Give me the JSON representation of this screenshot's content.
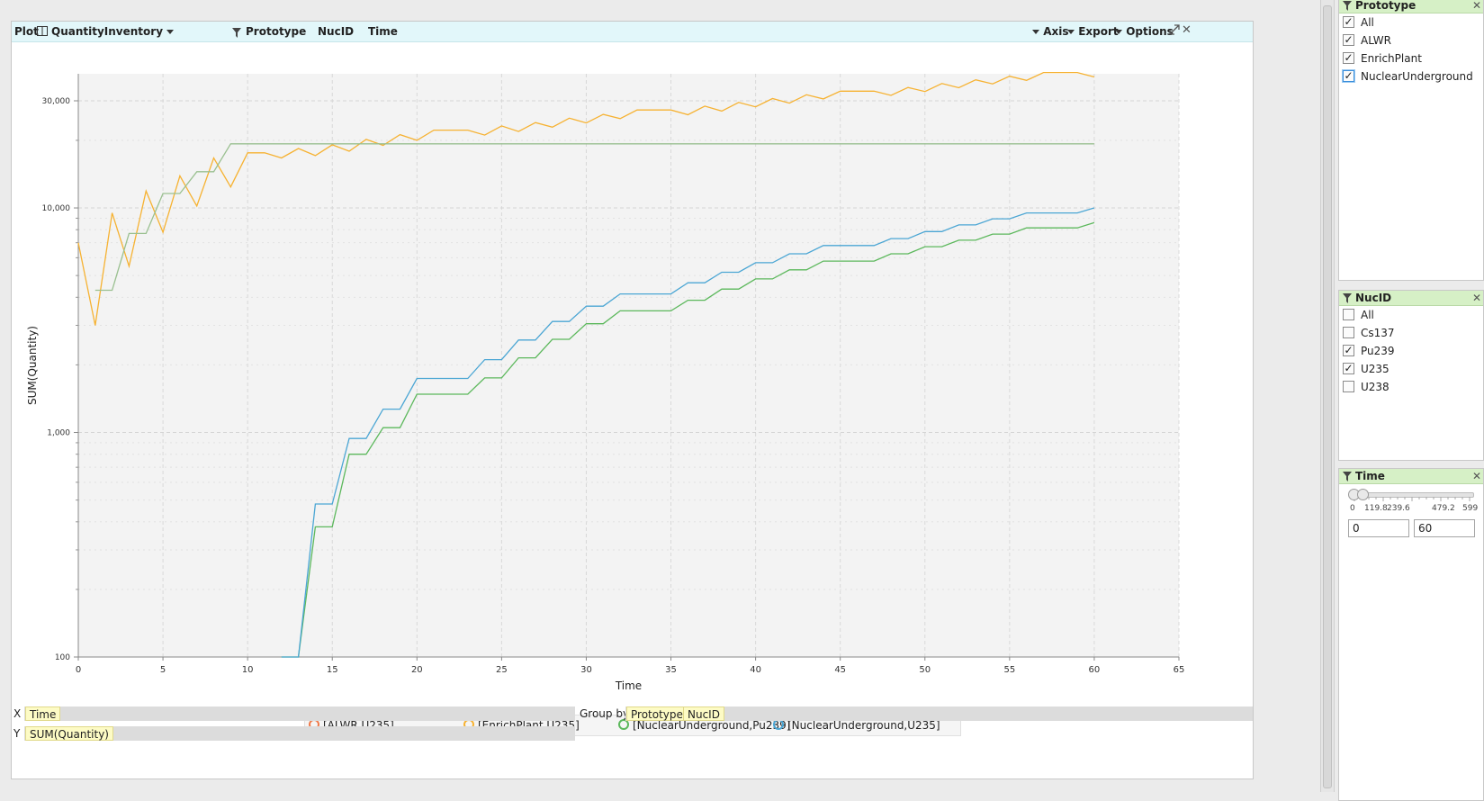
{
  "toolbar": {
    "plot_label": "Plot",
    "view_name": "QuantityInventory",
    "filters": [
      "Prototype",
      "NucID",
      "Time"
    ],
    "axis_label": "Axis",
    "export_label": "Export",
    "options_label": "Options"
  },
  "chart_data": {
    "type": "line",
    "ylabel": "SUM(Quantity)",
    "xlabel": "Time",
    "y_scale": "log",
    "xlim": [
      0,
      65
    ],
    "x_ticks": [
      0,
      5,
      10,
      15,
      20,
      25,
      30,
      35,
      40,
      45,
      50,
      55,
      60,
      65
    ],
    "y_ticks": [
      {
        "value": 100,
        "label": "100"
      },
      {
        "value": 1000,
        "label": "1,000"
      },
      {
        "value": 10000,
        "label": "10,000"
      },
      {
        "value": 30000,
        "label": "30,000"
      }
    ],
    "grid": true,
    "legend_placement": "bottom",
    "series": [
      {
        "name": "[ALWR,U235]",
        "color": "#f07a4a",
        "x": [],
        "y": []
      },
      {
        "name": "[EnrichPlant,U235]",
        "color": "#f6b232",
        "x": [
          0,
          1,
          2,
          3,
          4,
          5,
          6,
          7,
          8,
          9,
          10,
          11,
          12,
          13,
          14,
          15,
          16,
          17,
          18,
          19,
          20,
          21,
          22,
          23,
          24,
          25,
          26,
          27,
          28,
          29,
          30,
          31,
          32,
          33,
          34,
          35,
          36,
          37,
          38,
          39,
          40,
          41,
          42,
          43,
          44,
          45,
          46,
          47,
          48,
          49,
          50,
          51,
          52,
          53,
          54,
          55,
          56,
          57,
          58,
          59,
          60
        ],
        "y": [
          7000,
          3000,
          9500,
          5500,
          11900,
          7800,
          13900,
          10200,
          16700,
          12400,
          17600,
          17600,
          16700,
          18400,
          17100,
          19100,
          17900,
          20200,
          19000,
          21200,
          20000,
          22200,
          22200,
          22200,
          21100,
          23200,
          21900,
          24000,
          22900,
          25100,
          23900,
          26100,
          25000,
          27300,
          27300,
          27300,
          26000,
          28400,
          27000,
          29500,
          28200,
          30700,
          29300,
          31900,
          30600,
          33100,
          33100,
          33100,
          31700,
          34400,
          33000,
          35800,
          34300,
          37200,
          35700,
          38600,
          37000,
          40100,
          40100,
          40100,
          38300
        ]
      },
      {
        "name": "[NuclearUnderground,Pu239]",
        "color": "#5cb85c",
        "x": [
          12,
          13,
          14,
          15,
          16,
          17,
          18,
          19,
          20,
          21,
          22,
          23,
          24,
          25,
          26,
          27,
          28,
          29,
          30,
          31,
          32,
          33,
          34,
          35,
          36,
          37,
          38,
          39,
          40,
          41,
          42,
          43,
          44,
          45,
          46,
          47,
          48,
          49,
          50,
          51,
          52,
          53,
          54,
          55,
          56,
          57,
          58,
          59,
          60
        ],
        "y": [
          100,
          100,
          380,
          380,
          800,
          800,
          1050,
          1050,
          1480,
          1480,
          1480,
          1480,
          1750,
          1750,
          2150,
          2150,
          2600,
          2600,
          3050,
          3050,
          3480,
          3480,
          3480,
          3480,
          3880,
          3880,
          4350,
          4350,
          4830,
          4830,
          5300,
          5300,
          5800,
          5800,
          5800,
          5800,
          6250,
          6250,
          6720,
          6720,
          7180,
          7180,
          7650,
          7650,
          8150,
          8150,
          8150,
          8150,
          8600
        ]
      },
      {
        "name": "[NuclearUnderground,U235]",
        "color": "#4ba6d4",
        "x": [
          12,
          13,
          14,
          15,
          16,
          17,
          18,
          19,
          20,
          21,
          22,
          23,
          24,
          25,
          26,
          27,
          28,
          29,
          30,
          31,
          32,
          33,
          34,
          35,
          36,
          37,
          38,
          39,
          40,
          41,
          42,
          43,
          44,
          45,
          46,
          47,
          48,
          49,
          50,
          51,
          52,
          53,
          54,
          55,
          56,
          57,
          58,
          59,
          60
        ],
        "y": [
          100,
          100,
          480,
          480,
          940,
          940,
          1270,
          1270,
          1740,
          1740,
          1740,
          1740,
          2110,
          2110,
          2580,
          2580,
          3120,
          3120,
          3650,
          3650,
          4140,
          4140,
          4140,
          4140,
          4640,
          4640,
          5170,
          5170,
          5700,
          5700,
          6250,
          6250,
          6800,
          6800,
          6800,
          6800,
          7300,
          7300,
          7850,
          7850,
          8400,
          8400,
          8950,
          8950,
          9500,
          9500,
          9500,
          9500,
          10000
        ]
      },
      {
        "name": "",
        "color": "#9ac090",
        "x": [
          1,
          2,
          3,
          4,
          5,
          6,
          7,
          8,
          9,
          10,
          11,
          12,
          13,
          14,
          15,
          16,
          17,
          18,
          19,
          20,
          21,
          22,
          23,
          24,
          25,
          26,
          27,
          28,
          29,
          30,
          31,
          32,
          33,
          34,
          35,
          36,
          37,
          38,
          39,
          40,
          41,
          42,
          43,
          44,
          45,
          46,
          47,
          48,
          49,
          50,
          51,
          52,
          53,
          54,
          55,
          56,
          57,
          58,
          59,
          60
        ],
        "y": [
          4300,
          4300,
          7700,
          7700,
          11600,
          11600,
          14500,
          14500,
          19300,
          19300,
          19300,
          19300,
          19300,
          19300,
          19300,
          19300,
          19300,
          19300,
          19300,
          19300,
          19300,
          19300,
          19300,
          19300,
          19300,
          19300,
          19300,
          19300,
          19300,
          19300,
          19300,
          19300,
          19300,
          19300,
          19300,
          19300,
          19300,
          19300,
          19300,
          19300,
          19300,
          19300,
          19300,
          19300,
          19300,
          19300,
          19300,
          19300,
          19300,
          19300,
          19300,
          19300,
          19300,
          19300,
          19300,
          19300,
          19300,
          19300,
          19300,
          19300
        ]
      }
    ]
  },
  "legend": [
    {
      "label": "[ALWR,U235]",
      "color": "#f07a4a"
    },
    {
      "label": "[EnrichPlant,U235]",
      "color": "#f6b232"
    },
    {
      "label": "[NuclearUnderground,Pu239]",
      "color": "#5cb85c"
    },
    {
      "label": "[NuclearUnderground,U235]",
      "color": "#4ba6d4"
    }
  ],
  "shelves": {
    "x_label": "X",
    "x_field": "Time",
    "y_label": "Y",
    "y_field": "SUM(Quantity)",
    "group_by_label": "Group by",
    "group_fields": [
      "Prototype",
      "NucID"
    ]
  },
  "filters": {
    "prototype": {
      "title": "Prototype",
      "options": [
        {
          "label": "All",
          "checked": true
        },
        {
          "label": "ALWR",
          "checked": true
        },
        {
          "label": "EnrichPlant",
          "checked": true
        },
        {
          "label": "NuclearUnderground",
          "checked": true
        }
      ]
    },
    "nucid": {
      "title": "NucID",
      "options": [
        {
          "label": "All",
          "checked": false
        },
        {
          "label": "Cs137",
          "checked": false
        },
        {
          "label": "Pu239",
          "checked": true
        },
        {
          "label": "U235",
          "checked": true
        },
        {
          "label": "U238",
          "checked": false
        }
      ]
    },
    "time": {
      "title": "Time",
      "ticks": [
        "0",
        "119.8",
        "239.6",
        "479.2",
        "599"
      ],
      "min_value": "0",
      "max_value": "60"
    }
  },
  "check_mark": "✓",
  "close_glyph": "✕"
}
